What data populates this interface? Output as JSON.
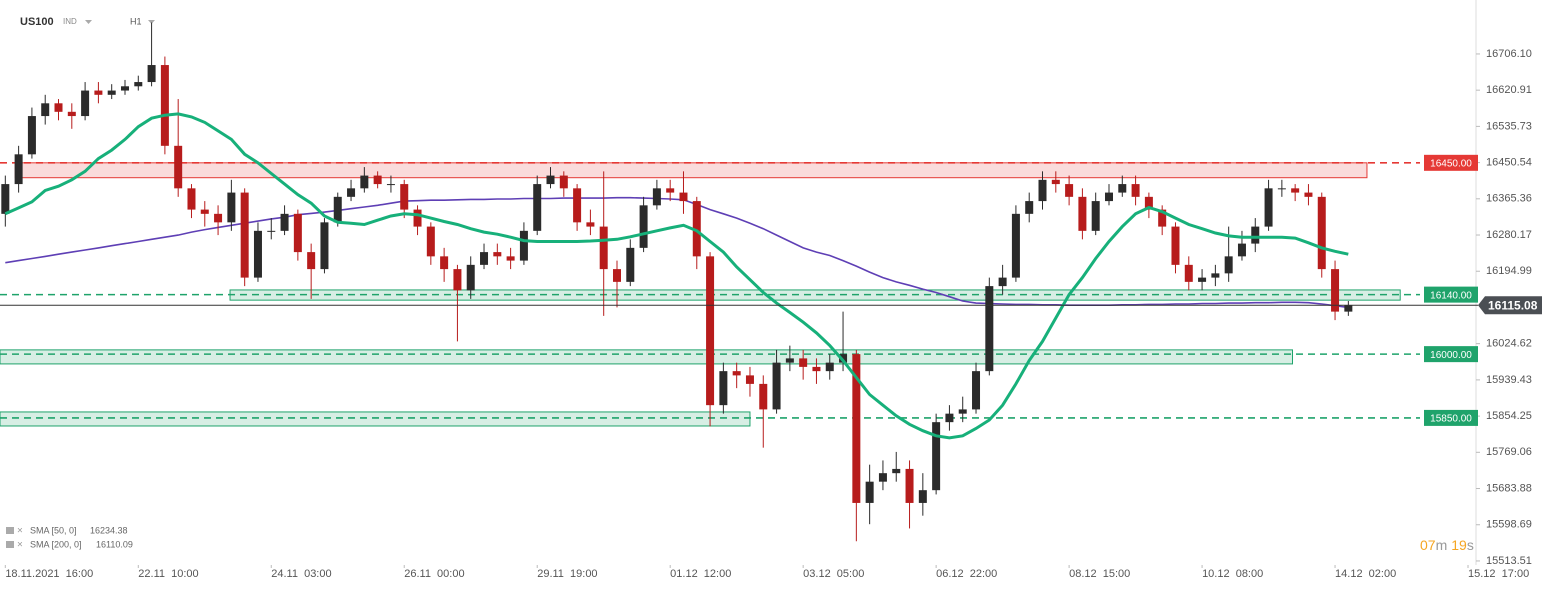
{
  "chart_data": {
    "type": "candlestick",
    "title": "US100",
    "instrument_type": "IND",
    "timeframe": "H1",
    "up_color": "#2b2b2b",
    "down_color": "#b71c1c",
    "open": [
      16330,
      16400,
      16470,
      16560,
      16590,
      16570,
      16560,
      16620,
      16610,
      16620,
      16630,
      16640,
      16680,
      16490,
      16390,
      16340,
      16330,
      16310,
      16380,
      16180,
      16290,
      16290,
      16330,
      16240,
      16200,
      16310,
      16370,
      16390,
      16420,
      16400,
      16400,
      16340,
      16300,
      16230,
      16200,
      16150,
      16210,
      16240,
      16230,
      16220,
      16290,
      16400,
      16420,
      16390,
      16310,
      16300,
      16200,
      16170,
      16250,
      16350,
      16390,
      16380,
      16360,
      16230,
      15880,
      15960,
      15950,
      15930,
      15870,
      15980,
      15990,
      15970,
      15960,
      15980,
      16000,
      15650,
      15700,
      15720,
      15730,
      15650,
      15680,
      15840,
      15860,
      15870,
      15960,
      16160,
      16180,
      16330,
      16360,
      16410,
      16400,
      16370,
      16290,
      16360,
      16380,
      16400,
      16370,
      16340,
      16300,
      16210,
      16170,
      16180,
      16190,
      16230,
      16260,
      16300,
      16390,
      16390,
      16380,
      16370,
      16200,
      16100
    ],
    "high": [
      16420,
      16490,
      16580,
      16610,
      16600,
      16590,
      16640,
      16640,
      16635,
      16645,
      16655,
      16780,
      16700,
      16600,
      16400,
      16360,
      16350,
      16410,
      16390,
      16310,
      16320,
      16350,
      16340,
      16260,
      16320,
      16380,
      16410,
      16440,
      16430,
      16420,
      16410,
      16350,
      16310,
      16250,
      16210,
      16230,
      16260,
      16260,
      16250,
      16310,
      16420,
      16440,
      16430,
      16400,
      16340,
      16430,
      16220,
      16270,
      16370,
      16410,
      16410,
      16430,
      16370,
      16240,
      15980,
      15980,
      15970,
      15950,
      16010,
      16020,
      16010,
      15990,
      16000,
      16100,
      16010,
      15740,
      15750,
      15770,
      15750,
      15720,
      15860,
      15880,
      15900,
      15980,
      16180,
      16210,
      16350,
      16380,
      16430,
      16430,
      16420,
      16390,
      16380,
      16400,
      16420,
      16420,
      16380,
      16350,
      16310,
      16230,
      16200,
      16210,
      16300,
      16290,
      16320,
      16410,
      16410,
      16400,
      16400,
      16380,
      16220,
      16125
    ],
    "low": [
      16300,
      16380,
      16460,
      16540,
      16550,
      16530,
      16550,
      16590,
      16600,
      16610,
      16620,
      16630,
      16470,
      16370,
      16320,
      16300,
      16280,
      16290,
      16160,
      16170,
      16270,
      16280,
      16220,
      16130,
      16190,
      16300,
      16360,
      16380,
      16390,
      16380,
      16320,
      16280,
      16210,
      16170,
      16030,
      16130,
      16200,
      16210,
      16200,
      16210,
      16280,
      16390,
      16370,
      16290,
      16280,
      16090,
      16110,
      16160,
      16240,
      16340,
      16360,
      16330,
      16200,
      15830,
      15860,
      15920,
      15900,
      15780,
      15860,
      15960,
      15940,
      15930,
      15940,
      15960,
      15560,
      15600,
      15680,
      15700,
      15590,
      15620,
      15670,
      15820,
      15840,
      15860,
      15950,
      16140,
      16170,
      16310,
      16340,
      16380,
      16350,
      16270,
      16280,
      16350,
      16370,
      16350,
      16320,
      16280,
      16190,
      16150,
      16150,
      16160,
      16170,
      16220,
      16240,
      16290,
      16370,
      16360,
      16350,
      16180,
      16080,
      16090
    ],
    "close": [
      16400,
      16470,
      16560,
      16590,
      16570,
      16560,
      16620,
      16610,
      16620,
      16630,
      16640,
      16680,
      16490,
      16390,
      16340,
      16330,
      16310,
      16380,
      16180,
      16290,
      16290,
      16330,
      16240,
      16200,
      16310,
      16370,
      16390,
      16420,
      16400,
      16400,
      16340,
      16300,
      16230,
      16200,
      16150,
      16210,
      16240,
      16230,
      16220,
      16290,
      16400,
      16420,
      16390,
      16310,
      16300,
      16200,
      16170,
      16250,
      16350,
      16390,
      16380,
      16360,
      16230,
      15880,
      15960,
      15950,
      15930,
      15870,
      15980,
      15990,
      15970,
      15960,
      15980,
      16000,
      15650,
      15700,
      15720,
      15730,
      15650,
      15680,
      15840,
      15860,
      15870,
      15960,
      16160,
      16180,
      16330,
      16360,
      16410,
      16400,
      16370,
      16290,
      16360,
      16380,
      16400,
      16370,
      16340,
      16300,
      16210,
      16170,
      16180,
      16190,
      16230,
      16260,
      16300,
      16390,
      16390,
      16380,
      16370,
      16200,
      16100,
      16115
    ],
    "overlays": [
      {
        "name": "SMA [50, 0]",
        "last": 16234.38,
        "color": "#17b07a",
        "width": 3,
        "values": [
          16330,
          16344,
          16358,
          16385,
          16395,
          16410,
          16430,
          16460,
          16480,
          16505,
          16535,
          16555,
          16562,
          16565,
          16558,
          16545,
          16525,
          16505,
          16470,
          16450,
          16425,
          16400,
          16375,
          16355,
          16325,
          16310,
          16308,
          16305,
          16315,
          16325,
          16330,
          16328,
          16320,
          16312,
          16305,
          16295,
          16287,
          16282,
          16275,
          16267,
          16265,
          16265,
          16265,
          16265,
          16266,
          16268,
          16270,
          16276,
          16283,
          16290,
          16297,
          16303,
          16290,
          16265,
          16240,
          16205,
          16175,
          16145,
          16120,
          16098,
          16075,
          16050,
          16020,
          15985,
          15945,
          15905,
          15880,
          15855,
          15835,
          15820,
          15808,
          15803,
          15808,
          15825,
          15845,
          15880,
          15930,
          15985,
          16030,
          16085,
          16140,
          16180,
          16225,
          16265,
          16300,
          16330,
          16345,
          16335,
          16320,
          16305,
          16295,
          16285,
          16278,
          16275,
          16275,
          16275,
          16275,
          16273,
          16262,
          16250,
          16242,
          16235
        ]
      },
      {
        "name": "SMA [200, 0]",
        "last": 16110.09,
        "color": "#5e3fb5",
        "width": 1.6,
        "values": [
          16215,
          16220,
          16225,
          16230,
          16235,
          16240,
          16245,
          16250,
          16255,
          16260,
          16265,
          16270,
          16275,
          16280,
          16287,
          16293,
          16298,
          16303,
          16308,
          16313,
          16318,
          16322,
          16328,
          16331,
          16334,
          16338,
          16342,
          16346,
          16350,
          16355,
          16360,
          16361,
          16362,
          16362,
          16363,
          16364,
          16364,
          16365,
          16365,
          16366,
          16366,
          16366,
          16367,
          16367,
          16367,
          16367,
          16368,
          16368,
          16367,
          16366,
          16365,
          16363,
          16352,
          16340,
          16330,
          16320,
          16308,
          16295,
          16280,
          16265,
          16250,
          16240,
          16232,
          16220,
          16207,
          16193,
          16180,
          16170,
          16162,
          16153,
          16145,
          16135,
          16125,
          16120,
          16119,
          16118,
          16117,
          16117,
          16116,
          16116,
          16115,
          16115,
          16115,
          16115,
          16116,
          16116,
          16117,
          16117,
          16118,
          16118,
          16119,
          16119,
          16120,
          16120,
          16121,
          16121,
          16122,
          16122,
          16121,
          16118,
          16114,
          16110
        ]
      }
    ],
    "levels": [
      {
        "value": 16450,
        "label": "16450.00",
        "color": "#e53935",
        "zone": [
          16415,
          16450
        ],
        "xrange": [
          0.75,
          102.4
        ]
      },
      {
        "value": 16140,
        "label": "16140.00",
        "color": "#1fa36b",
        "zone": [
          16127,
          16151
        ],
        "xrange": [
          16.9,
          104.9
        ]
      },
      {
        "value": 16000,
        "label": "16000.00",
        "color": "#1fa36b",
        "zone": [
          15977,
          16010
        ],
        "xrange": [
          -0.4,
          96.8
        ]
      },
      {
        "value": 15850,
        "label": "15850.00",
        "color": "#1fa36b",
        "zone": [
          15831,
          15864
        ],
        "xrange": [
          -0.4,
          56.0
        ]
      }
    ],
    "last_price": 16115.08,
    "ylim": [
      15504,
      16833
    ],
    "yticks": [
      {
        "value": 16706.1,
        "label": "16706.10"
      },
      16620.91,
      16535.73,
      16450.54,
      16365.36,
      16280.17,
      16194.99,
      16024.62,
      15939.43,
      15854.25,
      15769.06,
      15683.88,
      15598.69,
      15513.51
    ],
    "xlim": [
      -0.4,
      110.6
    ],
    "xticks": [
      {
        "value": 0,
        "label": "18.11.2021  16:00"
      },
      {
        "value": 10,
        "label": "22.11  10:00"
      },
      {
        "value": 20,
        "label": "24.11  03:00"
      },
      {
        "value": 30,
        "label": "26.11  00:00"
      },
      {
        "value": 40,
        "label": "29.11  19:00"
      },
      {
        "value": 50,
        "label": "01.12  12:00"
      },
      {
        "value": 60,
        "label": "03.12  05:00"
      },
      {
        "value": 70,
        "label": "06.12  22:00"
      },
      {
        "value": 80,
        "label": "08.12  15:00"
      },
      {
        "value": 90,
        "label": "10.12  08:00"
      },
      {
        "value": 100,
        "label": "14.12  02:00"
      },
      {
        "value": 110,
        "label": "15.12  17:00"
      }
    ],
    "timer": {
      "minutes": "07",
      "minutes_unit": "m",
      "seconds": "19",
      "seconds_unit": "s"
    }
  }
}
